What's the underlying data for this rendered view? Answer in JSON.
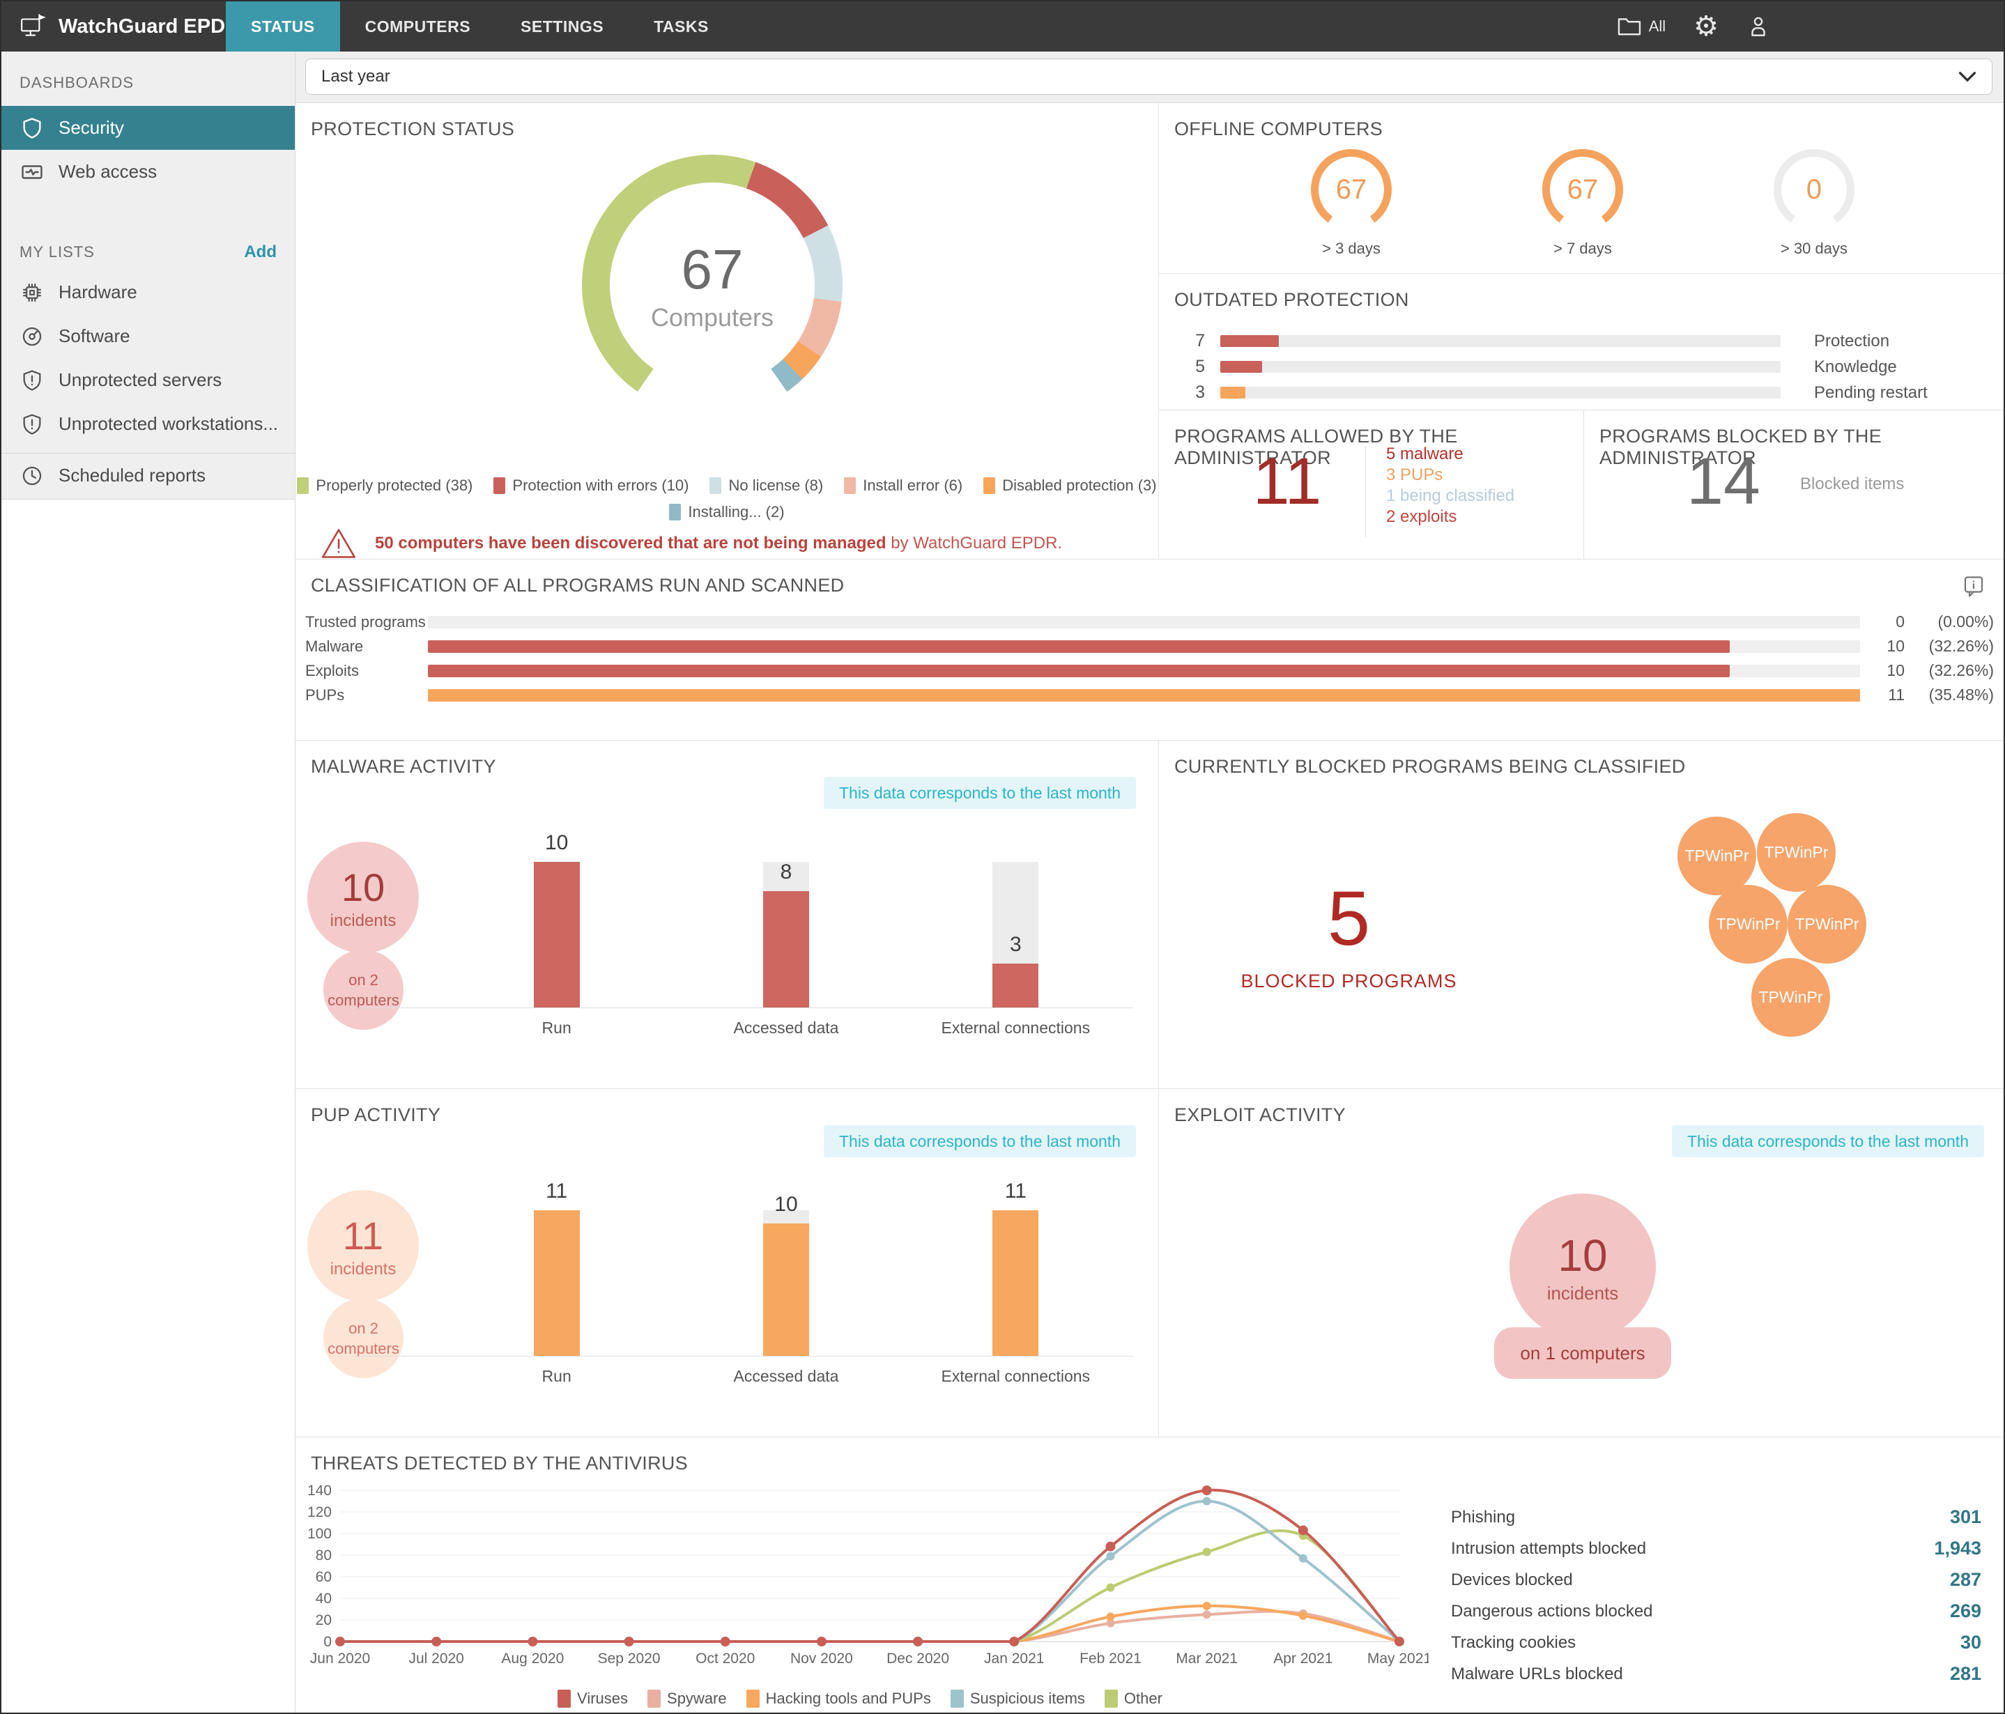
{
  "header": {
    "brand": "WatchGuard EPDR",
    "tabs": [
      {
        "label": "STATUS",
        "active": true
      },
      {
        "label": "COMPUTERS",
        "active": false
      },
      {
        "label": "SETTINGS",
        "active": false
      },
      {
        "label": "TASKS",
        "active": false
      }
    ],
    "folder_label": "All"
  },
  "filter": {
    "value": "Last year"
  },
  "sidebar": {
    "dashboards_title": "DASHBOARDS",
    "dashboard_items": [
      {
        "label": "Security",
        "icon": "shield",
        "active": true
      },
      {
        "label": "Web access",
        "icon": "pulse",
        "active": false
      }
    ],
    "my_lists_title": "MY LISTS",
    "add_label": "Add",
    "list_items": [
      {
        "label": "Hardware",
        "icon": "chip"
      },
      {
        "label": "Software",
        "icon": "disc"
      },
      {
        "label": "Unprotected servers",
        "icon": "shield-alert"
      },
      {
        "label": "Unprotected workstations...",
        "icon": "shield-alert"
      }
    ],
    "scheduled_item": {
      "label": "Scheduled reports",
      "icon": "clock"
    }
  },
  "panels": {
    "protection": {
      "title": "PROTECTION STATUS",
      "warning_bold": "50 computers have been discovered that are not being managed",
      "warning_rest": " by WatchGuard EPDR."
    },
    "offline": {
      "title": "OFFLINE COMPUTERS"
    },
    "outdated": {
      "title": "OUTDATED PROTECTION"
    },
    "allowed": {
      "title": "PROGRAMS ALLOWED BY THE ADMINISTRATOR",
      "value": "11",
      "items": [
        {
          "label": "5 malware",
          "color": "#b5302b"
        },
        {
          "label": "3 PUPs",
          "color": "#efa05f"
        },
        {
          "label": "1 being classified",
          "color": "#b9ccd9"
        },
        {
          "label": "2 exploits",
          "color": "#c5443c"
        }
      ]
    },
    "blocked_admin": {
      "title": "PROGRAMS BLOCKED BY THE ADMINISTRATOR",
      "value": "14",
      "label": "Blocked items"
    },
    "classification": {
      "title": "CLASSIFICATION OF ALL PROGRAMS RUN AND SCANNED"
    },
    "malware": {
      "title": "MALWARE ACTIVITY",
      "badge": "This data corresponds to the last month",
      "incidents_value": "10",
      "incidents_label": "incidents",
      "computers_line1": "on 2",
      "computers_line2": "computers",
      "bubble_bg": "#f4cbca",
      "num_color": "#a33d3b",
      "lbl_color": "#bc5a57"
    },
    "blocked_classified": {
      "title": "CURRENTLY BLOCKED PROGRAMS BEING CLASSIFIED",
      "value": "5",
      "label": "BLOCKED PROGRAMS",
      "bubble_color": "#f6a469",
      "bubbles": [
        "TPWinPr",
        "TPWinPr",
        "TPWinPr",
        "TPWinPr",
        "TPWinPr"
      ]
    },
    "pup": {
      "title": "PUP ACTIVITY",
      "badge": "This data corresponds to the last month",
      "incidents_value": "11",
      "incidents_label": "incidents",
      "computers_line1": "on 2",
      "computers_line2": "computers",
      "bubble_bg": "#fce5d5",
      "num_color": "#cf5a54",
      "lbl_color": "#d4736b"
    },
    "exploit": {
      "title": "EXPLOIT ACTIVITY",
      "badge": "This data corresponds to the last month",
      "incidents_value": "10",
      "incidents_label": "incidents",
      "computers_label": "on 1 computers"
    },
    "threats": {
      "title": "THREATS DETECTED BY THE ANTIVIRUS",
      "stats": [
        {
          "label": "Phishing",
          "value": "301"
        },
        {
          "label": "Intrusion attempts blocked",
          "value": "1,943"
        },
        {
          "label": "Devices blocked",
          "value": "287"
        },
        {
          "label": "Dangerous actions blocked",
          "value": "269"
        },
        {
          "label": "Tracking cookies",
          "value": "30"
        },
        {
          "label": "Malware URLs blocked",
          "value": "281"
        }
      ]
    }
  },
  "chart_data": [
    {
      "id": "protection-status-donut",
      "type": "pie",
      "title": "PROTECTION STATUS",
      "center_value": "67",
      "center_label": "Computers",
      "total": 67,
      "segments": [
        {
          "label": "Properly protected (38)",
          "value": 38,
          "color": "#c0d07a"
        },
        {
          "label": "Protection with errors (10)",
          "value": 10,
          "color": "#c9605a"
        },
        {
          "label": "No license (8)",
          "value": 8,
          "color": "#cfe0e4"
        },
        {
          "label": "Install error (6)",
          "value": 6,
          "color": "#efb9a6"
        },
        {
          "label": "Disabled protection (3)",
          "value": 3,
          "color": "#f8a55c"
        },
        {
          "label": "Installing... (2)",
          "value": 2,
          "color": "#8fbac6"
        }
      ]
    },
    {
      "id": "offline-computers-gauges",
      "type": "gauge",
      "total": 67,
      "gauges": [
        {
          "value": "67",
          "fraction": 1,
          "color": "#f5a25d",
          "label": "> 3 days"
        },
        {
          "value": "67",
          "fraction": 1,
          "color": "#f5a25d",
          "label": "> 7 days"
        },
        {
          "value": "0",
          "fraction": 0,
          "color": "#f5a25d",
          "label": "> 30 days"
        }
      ]
    },
    {
      "id": "outdated-protection",
      "type": "bar",
      "orientation": "horizontal",
      "max": 67,
      "rows": [
        {
          "label": "Protection",
          "value": 7,
          "color": "#c9605a"
        },
        {
          "label": "Knowledge",
          "value": 5,
          "color": "#c9605a"
        },
        {
          "label": "Pending restart",
          "value": 3,
          "color": "#f8a55c"
        }
      ]
    },
    {
      "id": "classification-programs",
      "type": "bar",
      "orientation": "horizontal",
      "max": 11,
      "rows": [
        {
          "label": "Trusted programs",
          "value": 0,
          "display": "0",
          "percent": "(0.00%)",
          "color": "#c9605a"
        },
        {
          "label": "Malware",
          "value": 10,
          "display": "10",
          "percent": "(32.26%)",
          "color": "#c9605a"
        },
        {
          "label": "Exploits",
          "value": 10,
          "display": "10",
          "percent": "(32.26%)",
          "color": "#c9605a"
        },
        {
          "label": "PUPs",
          "value": 11,
          "display": "11",
          "percent": "(35.48%)",
          "color": "#f8a55c"
        }
      ]
    },
    {
      "id": "malware-activity-bars",
      "type": "bar",
      "max": 10,
      "color": "#cd675f",
      "categories": [
        "Run",
        "Accessed data",
        "External connections"
      ],
      "values": [
        10,
        8,
        3
      ]
    },
    {
      "id": "pup-activity-bars",
      "type": "bar",
      "max": 11,
      "color": "#f8a75e",
      "categories": [
        "Run",
        "Accessed data",
        "External connections"
      ],
      "values": [
        11,
        10,
        11
      ]
    },
    {
      "id": "threats-line",
      "type": "line",
      "title": "THREATS DETECTED BY THE ANTIVIRUS",
      "x": [
        "Jun 2020",
        "Jul 2020",
        "Aug 2020",
        "Sep 2020",
        "Oct 2020",
        "Nov 2020",
        "Dec 2020",
        "Jan 2021",
        "Feb 2021",
        "Mar 2021",
        "Apr 2021",
        "May 2021"
      ],
      "ylim": [
        0,
        140
      ],
      "ytick_step": 20,
      "grid": true,
      "legend_position": "bottom",
      "series": [
        {
          "name": "Viruses",
          "color": "#c75f57",
          "values": [
            0,
            0,
            0,
            0,
            0,
            0,
            0,
            0,
            88,
            140,
            103,
            0
          ]
        },
        {
          "name": "Spyware",
          "color": "#e8b0a0",
          "values": [
            0,
            0,
            0,
            0,
            0,
            0,
            0,
            0,
            17,
            25,
            26,
            0
          ]
        },
        {
          "name": "Hacking tools and PUPs",
          "color": "#f8a75e",
          "values": [
            0,
            0,
            0,
            0,
            0,
            0,
            0,
            0,
            23,
            33,
            24,
            0
          ]
        },
        {
          "name": "Suspicious items",
          "color": "#9ec3cc",
          "values": [
            0,
            0,
            0,
            0,
            0,
            0,
            0,
            0,
            79,
            130,
            77,
            0
          ]
        },
        {
          "name": "Other",
          "color": "#bccc72",
          "values": [
            0,
            0,
            0,
            0,
            0,
            0,
            0,
            0,
            50,
            83,
            98,
            0
          ]
        }
      ]
    }
  ]
}
